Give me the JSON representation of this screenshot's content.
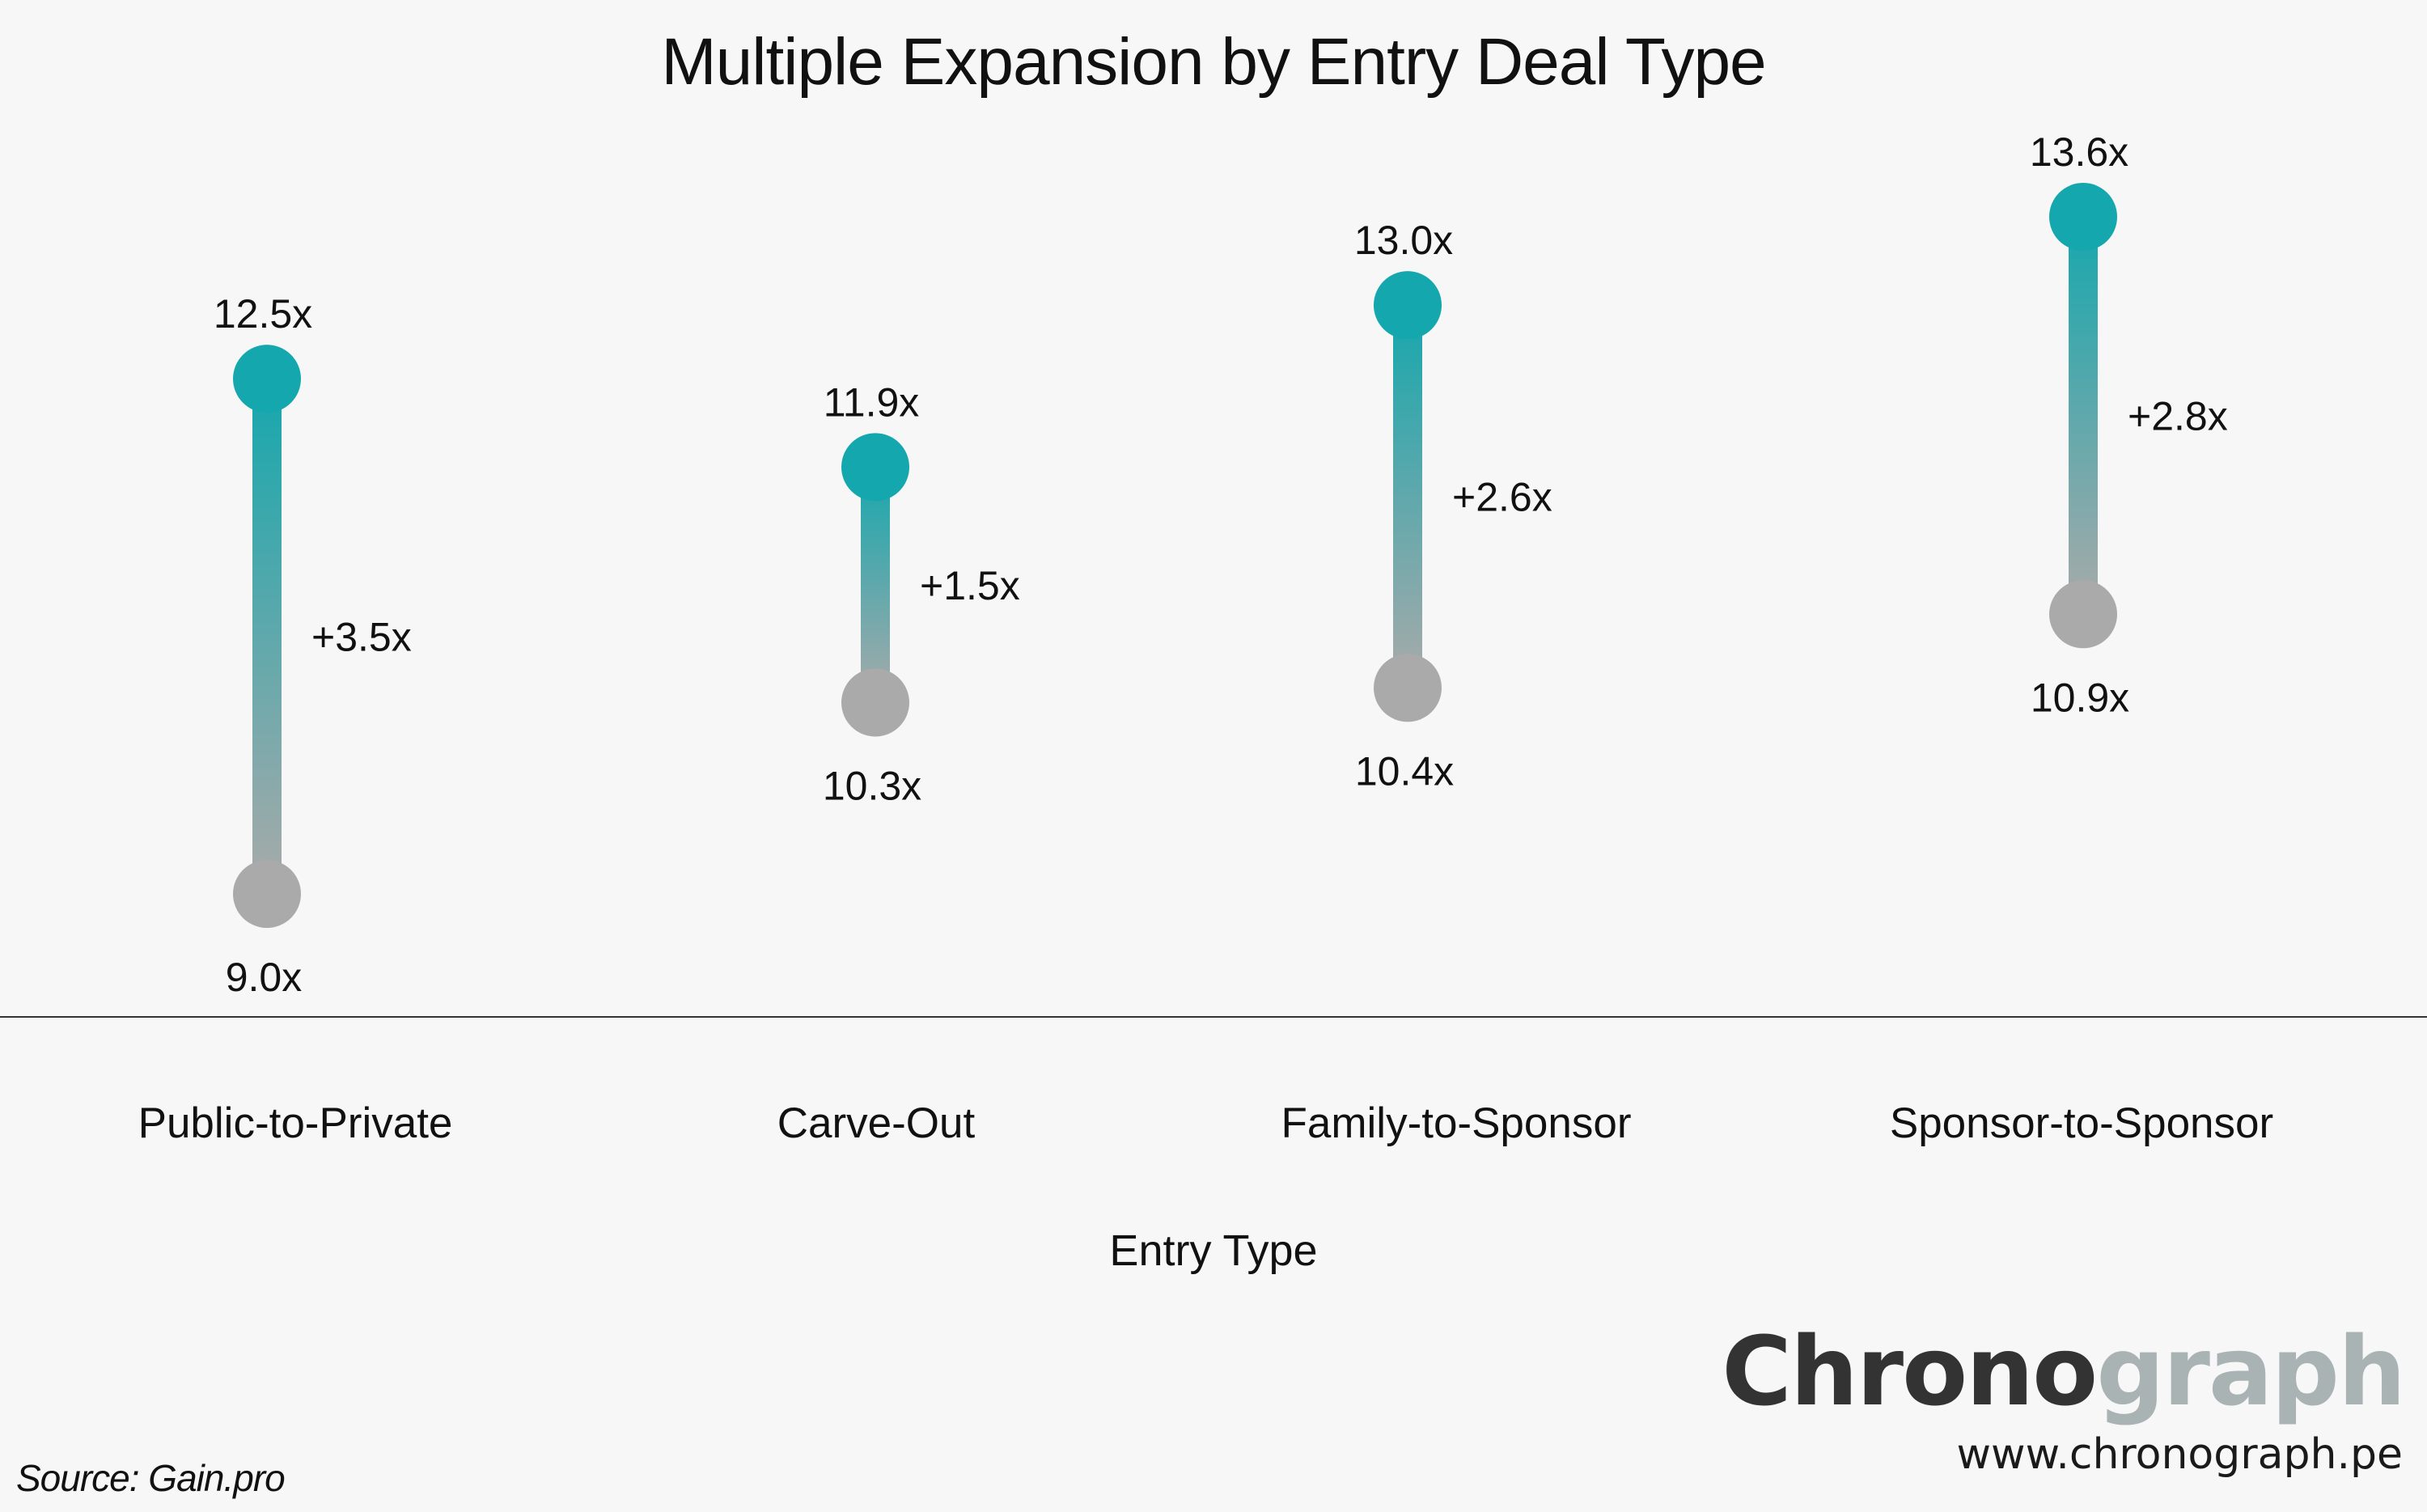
{
  "chart_data": {
    "type": "dumbbell",
    "title": "Multiple Expansion by Entry Deal Type",
    "xlabel": "Entry Type",
    "ylabel": "",
    "ylim": [
      8.0,
      14.6
    ],
    "categories": [
      "Public-to-Private",
      "Carve-Out",
      "Family-to-Sponsor",
      "Sponsor-to-Sponsor"
    ],
    "entry_values": [
      9.0,
      10.3,
      10.4,
      10.9
    ],
    "exit_values": [
      12.5,
      11.9,
      13.0,
      13.6
    ],
    "entry_labels": [
      "9.0x",
      "10.3x",
      "10.4x",
      "10.9x"
    ],
    "exit_labels": [
      "12.5x",
      "11.9x",
      "13.0x",
      "13.6x"
    ],
    "expansion_labels": [
      "+3.5x",
      "+1.5x",
      "+2.6x",
      "+2.8x"
    ],
    "colors": {
      "exit": "#14a7ad",
      "entry": "#aaaaaa",
      "axis": "#333333"
    },
    "grid": false,
    "legend": "none"
  },
  "source": "Source: Gain.pro",
  "brand": {
    "logo_part1": "Chrono",
    "logo_part2": "graph",
    "url": "www.chronograph.pe"
  }
}
